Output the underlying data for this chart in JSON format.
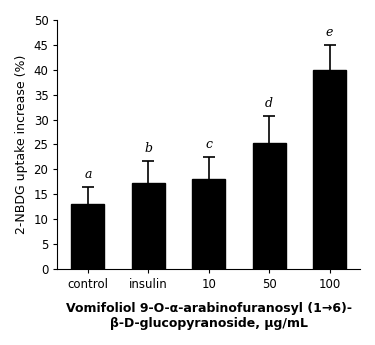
{
  "categories": [
    "control",
    "insulin",
    "10",
    "50",
    "100"
  ],
  "values": [
    13.0,
    17.2,
    18.0,
    25.2,
    40.0
  ],
  "errors": [
    3.5,
    4.5,
    4.5,
    5.5,
    5.0
  ],
  "bar_color": "#000000",
  "bar_width": 0.55,
  "ylim": [
    0,
    50
  ],
  "yticks": [
    0,
    5,
    10,
    15,
    20,
    25,
    30,
    35,
    40,
    45,
    50
  ],
  "ylabel": "2-NBDG uptake increase (%)",
  "xlabel_line1": "Vomifoliol 9-O-α-arabinofuranosyl (1→6)-",
  "xlabel_line2": "β-D-glucopyranoside, μg/mL",
  "significance_labels": [
    "a",
    "b",
    "c",
    "d",
    "e"
  ],
  "sig_fontsize": 9,
  "ylabel_fontsize": 9,
  "xlabel_fontsize": 9,
  "tick_fontsize": 8.5,
  "background_color": "#ffffff"
}
